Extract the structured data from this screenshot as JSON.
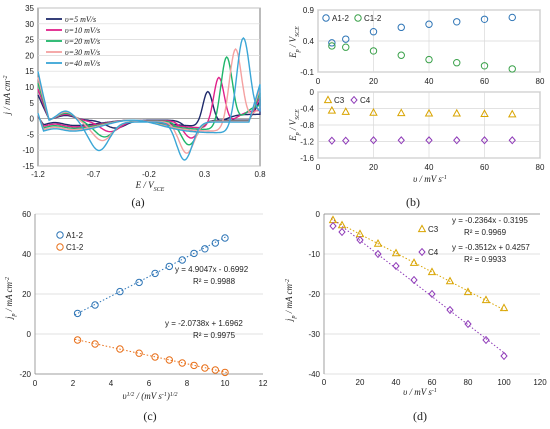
{
  "colors": {
    "blue": "#2e75b6",
    "green": "#3aa14a",
    "orange": "#e8701a",
    "gold": "#d9a400",
    "purple": "#8e3ab8",
    "cv": [
      "#1f2a6b",
      "#e0218a",
      "#1fb56a",
      "#f4a1a1",
      "#3aa6d6"
    ]
  },
  "panels": {
    "a": "(a)",
    "b": "(b)",
    "c": "(c)",
    "d": "(d)"
  },
  "chart_data": [
    {
      "id": "a",
      "type": "line",
      "xlabel": "E / V",
      "xlabel_sub": "SCE",
      "ylabel": "j / mA cm",
      "ylabel_sup": "-2",
      "xlim": [
        -1.2,
        0.8
      ],
      "ylim": [
        -15,
        35
      ],
      "xticks": [
        "-1.2",
        "-0.7",
        "-0.2",
        "0.3",
        "0.8"
      ],
      "yticks": [
        "-15",
        "-10",
        "-5",
        "0",
        "5",
        "10",
        "15",
        "20",
        "25",
        "30",
        "35"
      ],
      "legend": "top-left",
      "series": [
        {
          "name": "υ=5 mV/s",
          "peak_anodic_E": 0.33,
          "peak_anodic_j": 11,
          "peak_cathodic": [
            [
              -0.5,
              -2.5
            ],
            [
              0.2,
              -3.5
            ]
          ]
        },
        {
          "name": "υ=10 mV/s",
          "peak_anodic_E": 0.43,
          "peak_anodic_j": 16,
          "peak_cathodic": [
            [
              -0.55,
              -3.5
            ],
            [
              0.18,
              -5.5
            ]
          ]
        },
        {
          "name": "υ=20 mV/s",
          "peak_anodic_E": 0.5,
          "peak_anodic_j": 23,
          "peak_cathodic": [
            [
              -0.6,
              -5
            ],
            [
              0.16,
              -7.5
            ]
          ]
        },
        {
          "name": "υ=30 mV/s",
          "peak_anodic_E": 0.58,
          "peak_anodic_j": 26,
          "peak_cathodic": [
            [
              -0.62,
              -6
            ],
            [
              0.14,
              -10
            ]
          ]
        },
        {
          "name": "υ=40 mV/s",
          "peak_anodic_E": 0.65,
          "peak_anodic_j": 30,
          "peak_cathodic": [
            [
              -0.65,
              -9
            ],
            [
              0.12,
              -12
            ]
          ]
        }
      ]
    },
    {
      "id": "b-top",
      "type": "scatter",
      "ylabel": "E",
      "ylabel_sub": "p",
      "ylabel_unit": " / V",
      "ylabel_unit_sub": "SCE",
      "xlim": [
        0,
        80
      ],
      "ylim": [
        -0.1,
        0.9
      ],
      "xticks": [
        "0",
        "20",
        "40",
        "60",
        "80"
      ],
      "yticks": [
        "-0.1",
        "0.4",
        "0.9"
      ],
      "legend": "top-left",
      "series": [
        {
          "name": "A1-2",
          "x": [
            5,
            10,
            20,
            30,
            40,
            50,
            60,
            70
          ],
          "y": [
            0.37,
            0.43,
            0.55,
            0.62,
            0.67,
            0.71,
            0.75,
            0.78
          ]
        },
        {
          "name": "C1-2",
          "x": [
            5,
            10,
            20,
            30,
            40,
            50,
            60,
            70
          ],
          "y": [
            0.32,
            0.3,
            0.24,
            0.17,
            0.1,
            0.05,
            0.0,
            -0.05
          ]
        }
      ]
    },
    {
      "id": "b-bottom",
      "type": "scatter",
      "xlabel": "υ / mV s",
      "xlabel_sup": "-1",
      "ylabel": "E",
      "ylabel_sub": "p",
      "ylabel_unit": " / V",
      "ylabel_unit_sub": "SCE",
      "xlim": [
        0,
        80
      ],
      "ylim": [
        -1.6,
        0
      ],
      "xticks": [
        "0",
        "20",
        "40",
        "60",
        "80"
      ],
      "yticks": [
        "-1.6",
        "-1.2",
        "-0.8",
        "-0.4",
        "0"
      ],
      "legend": "top-left",
      "series": [
        {
          "name": "C3",
          "x": [
            5,
            10,
            20,
            30,
            40,
            50,
            60,
            70
          ],
          "y": [
            -0.45,
            -0.48,
            -0.5,
            -0.51,
            -0.52,
            -0.52,
            -0.53,
            -0.54
          ]
        },
        {
          "name": "C4",
          "x": [
            5,
            10,
            20,
            30,
            40,
            50,
            60,
            70
          ],
          "y": [
            -1.18,
            -1.18,
            -1.17,
            -1.17,
            -1.17,
            -1.17,
            -1.17,
            -1.17
          ]
        }
      ]
    },
    {
      "id": "c",
      "type": "scatter",
      "xlabel": "υ",
      "xlabel_sup": "1/2",
      "xlabel_mid": " / (mV s",
      "xlabel_sup2": "-1",
      "xlabel_end": ")",
      "xlabel_sup3": "1/2",
      "ylabel": "j",
      "ylabel_sub": "p",
      "ylabel_unit": " / mA cm",
      "ylabel_unit_sup": "-2",
      "xlim": [
        0,
        12
      ],
      "ylim": [
        -20,
        60
      ],
      "xticks": [
        "0",
        "2",
        "4",
        "6",
        "8",
        "10",
        "12"
      ],
      "yticks": [
        "-20",
        "0",
        "20",
        "40",
        "60"
      ],
      "legend": "top-left",
      "series": [
        {
          "name": "A1-2",
          "x": [
            2.24,
            3.16,
            4.47,
            5.48,
            6.32,
            7.07,
            7.75,
            8.37,
            8.94,
            9.49,
            10.0
          ],
          "y": [
            10.3,
            14.5,
            21.2,
            25.8,
            30.3,
            33.8,
            37.0,
            40.3,
            42.6,
            45.5,
            48.0
          ]
        },
        {
          "name": "C1-2",
          "x": [
            2.24,
            3.16,
            4.47,
            5.48,
            6.32,
            7.07,
            7.75,
            8.37,
            8.94,
            9.49,
            10.0
          ],
          "y": [
            -3.0,
            -5.0,
            -7.5,
            -9.6,
            -11.5,
            -13.0,
            -14.5,
            -15.7,
            -17.0,
            -18.0,
            -19.2
          ]
        }
      ],
      "trendlines": [
        {
          "equation": "y = 4.9047x - 0.6992",
          "r2": "R² = 0.9988",
          "slope": 4.9047,
          "intercept": -0.6992
        },
        {
          "equation": "y = -2.0738x + 1.6962",
          "r2": "R² = 0.9975",
          "slope": -2.0738,
          "intercept": 1.6962
        }
      ]
    },
    {
      "id": "d",
      "type": "scatter",
      "xlabel": "υ / mV s",
      "xlabel_sup": "-1",
      "ylabel": "j",
      "ylabel_sub": "p",
      "ylabel_unit": " / mA cm",
      "ylabel_unit_sup": "-2",
      "xlim": [
        0,
        120
      ],
      "ylim": [
        -40,
        0
      ],
      "xticks": [
        "0",
        "20",
        "40",
        "60",
        "80",
        "100",
        "120"
      ],
      "yticks": [
        "-40",
        "-30",
        "-20",
        "-10",
        "0"
      ],
      "legend": "top-right",
      "series": [
        {
          "name": "C3",
          "x": [
            5,
            10,
            20,
            30,
            40,
            50,
            60,
            70,
            80,
            90,
            100
          ],
          "y": [
            -1.5,
            -2.8,
            -5.0,
            -7.4,
            -9.8,
            -12.2,
            -14.5,
            -16.8,
            -19.5,
            -21.5,
            -23.5
          ]
        },
        {
          "name": "C4",
          "x": [
            5,
            10,
            20,
            30,
            40,
            50,
            60,
            70,
            80,
            90,
            100
          ],
          "y": [
            -3.0,
            -4.5,
            -6.5,
            -10.0,
            -13.0,
            -16.5,
            -20.0,
            -24.0,
            -27.5,
            -31.5,
            -35.5
          ]
        }
      ],
      "trendlines": [
        {
          "equation": "y = -0.2364x - 0.3195",
          "r2": "R² = 0.9969",
          "slope": -0.2364,
          "intercept": -0.3195
        },
        {
          "equation": "y = -0.3512x + 0.4257",
          "r2": "R² = 0.9933",
          "slope": -0.3512,
          "intercept": 0.4257
        }
      ]
    }
  ]
}
